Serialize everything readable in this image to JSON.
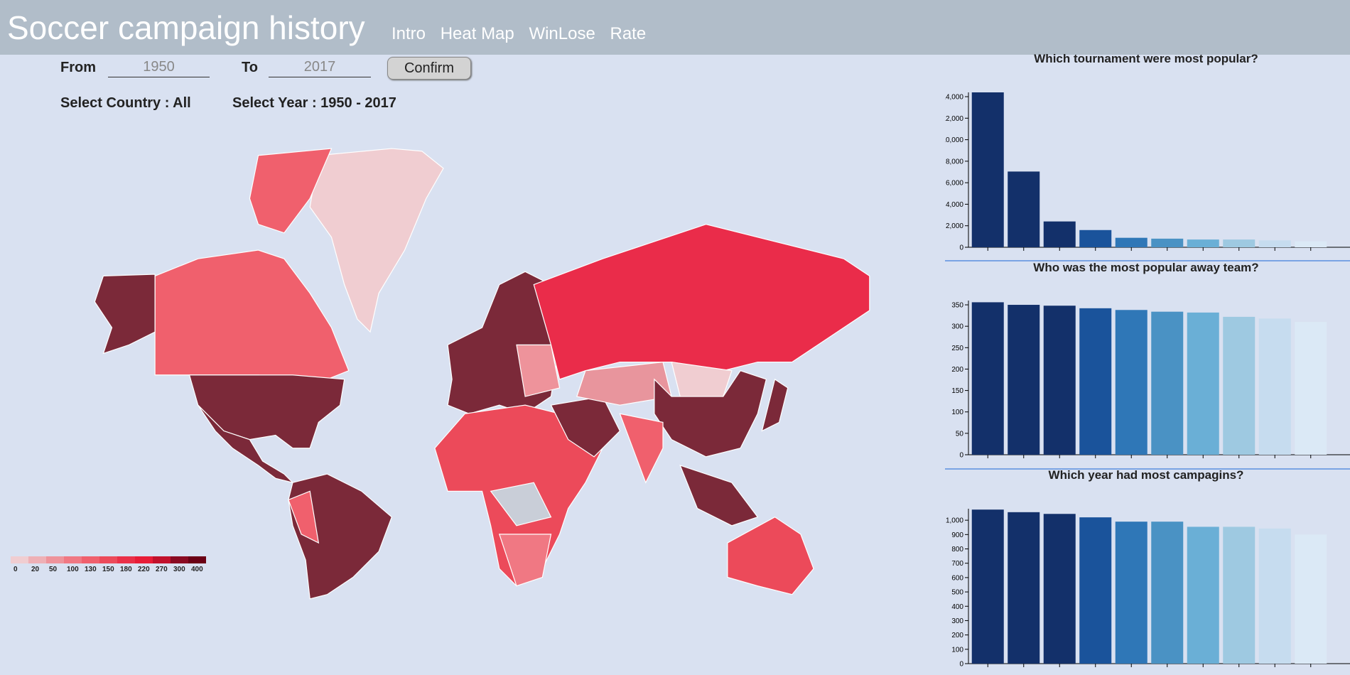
{
  "header": {
    "title": "Soccer campaign history",
    "nav": [
      "Intro",
      "Heat Map",
      "WinLose",
      "Rate"
    ]
  },
  "form": {
    "from_label": "From",
    "from_value": "1950",
    "to_label": "To",
    "to_value": "2017",
    "button": "Confirm"
  },
  "selection": {
    "country": "Select Country : All",
    "year": "Select Year : 1950 - 2017"
  },
  "legend": {
    "labels": [
      "0",
      "20",
      "50",
      "100",
      "130",
      "150",
      "180",
      "220",
      "270",
      "300",
      "400"
    ],
    "colors": [
      "#f0cdd1",
      "#eeb0b6",
      "#ee939b",
      "#f07883",
      "#f0606d",
      "#ec4a5a",
      "#ea3048",
      "#e81c37",
      "#c2112c",
      "#8a0a22",
      "#6b0015"
    ]
  },
  "chart_data": [
    {
      "type": "bar",
      "title": "Which tournament were most popular?",
      "values": [
        14400,
        7040,
        2400,
        1600,
        880,
        800,
        720,
        720,
        640,
        560
      ],
      "colors": [
        "#13306a",
        "#13306a",
        "#13306a",
        "#1a539b",
        "#2f77b7",
        "#4a92c4",
        "#6aafd6",
        "#9ec9e1",
        "#c6dcef",
        "#dbe9f6"
      ],
      "ylim": [
        0,
        14400
      ],
      "yticks": [
        0,
        {
          "value": 2000,
          "label": "2,000"
        },
        {
          "value": 4000,
          "label": "4,000"
        },
        {
          "value": 6000,
          "label": "6,000"
        },
        {
          "value": 8000,
          "label": "8,000"
        },
        {
          "value": 10000,
          "label": "10,000"
        },
        {
          "value": 12000,
          "label": "12,000"
        },
        {
          "value": 14000,
          "label": "14,000"
        }
      ]
    },
    {
      "type": "bar",
      "title": "Who was the most popular away team?",
      "values": [
        356,
        350,
        348,
        342,
        338,
        334,
        332,
        322,
        318,
        310
      ],
      "colors": [
        "#13306a",
        "#13306a",
        "#13306a",
        "#1a539b",
        "#2f77b7",
        "#4a92c4",
        "#6aafd6",
        "#9ec9e1",
        "#c6dcef",
        "#dbe9f6"
      ],
      "ylim": [
        0,
        360
      ],
      "yticks": [
        0,
        50,
        100,
        150,
        200,
        250,
        300,
        350
      ]
    },
    {
      "type": "bar",
      "title": "Which year had most campagins?",
      "values": [
        1074,
        1056,
        1044,
        1020,
        990,
        990,
        954,
        954,
        942,
        900
      ],
      "colors": [
        "#13306a",
        "#13306a",
        "#13306a",
        "#1a539b",
        "#2f77b7",
        "#4a92c4",
        "#6aafd6",
        "#9ec9e1",
        "#c6dcef",
        "#dbe9f6"
      ],
      "ylim": [
        0,
        1080
      ],
      "yticks": [
        0,
        100,
        200,
        300,
        400,
        500,
        600,
        700,
        800,
        900,
        {
          "value": 1000,
          "label": "1,000"
        }
      ]
    }
  ]
}
